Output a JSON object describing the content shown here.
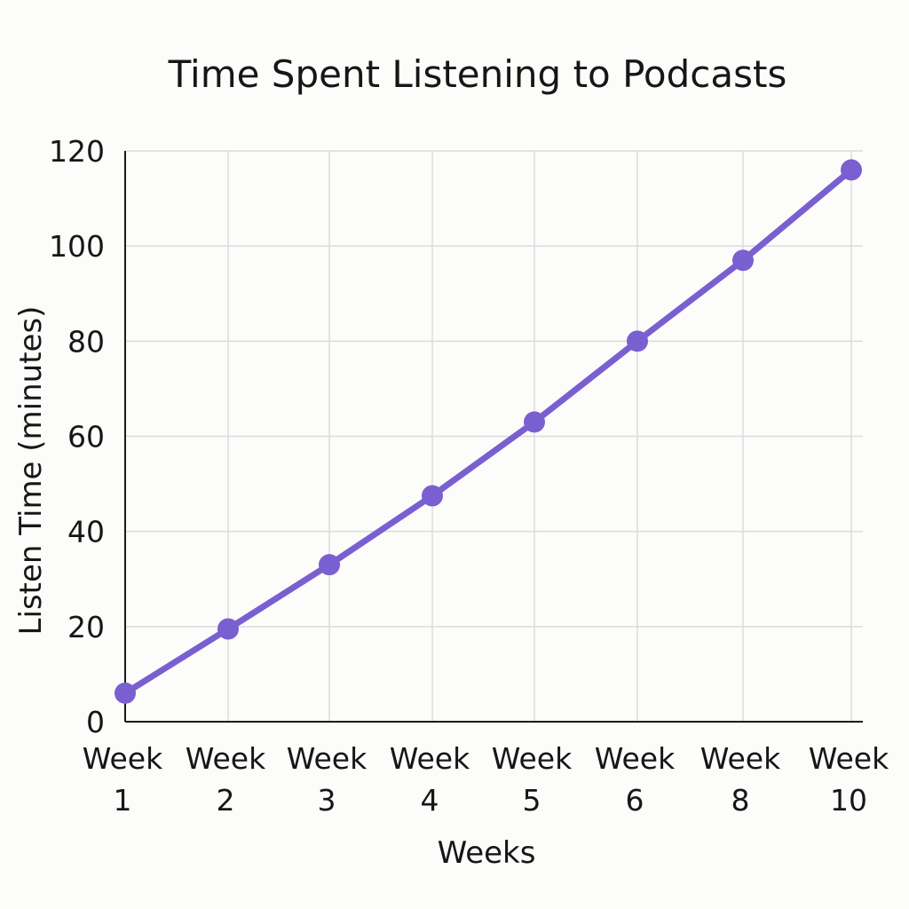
{
  "chart_data": {
    "type": "line",
    "title": "Time Spent Listening to Podcasts",
    "xlabel": "Weeks",
    "ylabel": "Listen Time (minutes)",
    "categories": [
      [
        "Week",
        "1"
      ],
      [
        "Week",
        "2"
      ],
      [
        "Week",
        "3"
      ],
      [
        "Week",
        "4"
      ],
      [
        "Week",
        "5"
      ],
      [
        "Week",
        "6"
      ],
      [
        "Week",
        "8"
      ],
      [
        "Week",
        "10"
      ]
    ],
    "series": [
      {
        "values": [
          6,
          19.5,
          33,
          47.5,
          63,
          80,
          97,
          116
        ]
      }
    ],
    "ylim": [
      0,
      120
    ],
    "yticks": [
      0,
      20,
      40,
      60,
      80,
      100,
      120
    ],
    "grid": true,
    "legend": "none",
    "colors": {
      "series": "#7a5fd1",
      "grid": "#dcdcdc",
      "axis": "#1a1a1a",
      "text": "#161616"
    }
  }
}
